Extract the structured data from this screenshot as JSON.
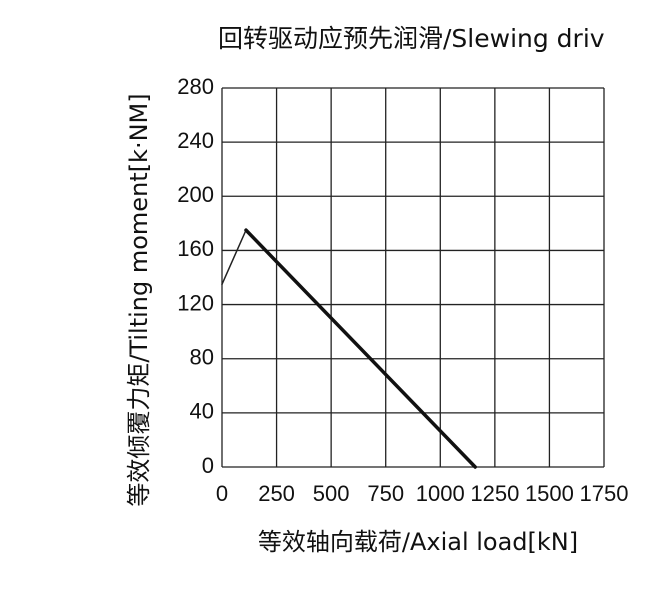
{
  "chart_data": {
    "type": "line",
    "title": "回转驱动应预先润滑/Slewing driv",
    "x_label": "等效轴向载荷/Axial load[kN]",
    "y_label": "等效倾覆力矩/Tilting moment[k·NM]",
    "series": [
      {
        "color": "#222222",
        "line_width": 1.5,
        "x": [
          0,
          110
        ],
        "values": [
          135,
          175
        ]
      },
      {
        "color": "#111111",
        "line_width": 3.5,
        "x": [
          110,
          1160
        ],
        "values": [
          175,
          0
        ]
      }
    ],
    "xlim": [
      0,
      1750
    ],
    "xticks": [
      0,
      250,
      500,
      750,
      1000,
      1250,
      1500,
      1750
    ],
    "ylim": [
      0,
      280
    ],
    "yticks": [
      0,
      40,
      80,
      120,
      160,
      200,
      240,
      280
    ],
    "grid": true
  }
}
